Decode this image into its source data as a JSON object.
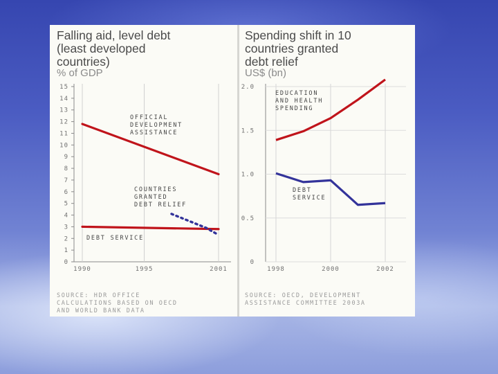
{
  "chart_data": [
    {
      "type": "line",
      "title": [
        "Falling aid, level debt",
        "(least developed",
        "countries)"
      ],
      "ylabel": "% of GDP",
      "ylim": [
        0,
        15
      ],
      "y_ticks": [
        "0",
        "1",
        "2",
        "3",
        "4",
        "5",
        "6",
        "7",
        "8",
        "9",
        "10",
        "11",
        "12",
        "13",
        "14",
        "15"
      ],
      "x_ticks": [
        "1990",
        "1995",
        "2001"
      ],
      "series": [
        {
          "name": "OFFICIAL DEVELOPMENT ASSISTANCE",
          "color": "#c0141b",
          "style": "solid",
          "points": [
            {
              "x": 1990,
              "y": 11.8
            },
            {
              "x": 2001,
              "y": 7.5
            }
          ]
        },
        {
          "name": "DEBT SERVICE",
          "color": "#c0141b",
          "style": "solid",
          "points": [
            {
              "x": 1990,
              "y": 3.0
            },
            {
              "x": 2001,
              "y": 2.8
            }
          ]
        },
        {
          "name": "COUNTRIES GRANTED DEBT RELIEF",
          "color": "#33339a",
          "style": "dotted",
          "points": [
            {
              "x": 1997.2,
              "y": 4.1
            },
            {
              "x": 2000,
              "y": 2.9
            },
            {
              "x": 2001,
              "y": 2.3
            }
          ]
        }
      ],
      "annotations": [
        [
          "OFFICIAL",
          "DEVELOPMENT",
          "ASSISTANCE"
        ],
        [
          "COUNTRIES",
          "GRANTED",
          "DEBT RELIEF"
        ],
        [
          "DEBT SERVICE"
        ]
      ],
      "source": [
        "SOURCE: HDR OFFICE",
        "CALCULATIONS BASED ON OECD",
        "AND WORLD BANK DATA"
      ]
    },
    {
      "type": "line",
      "title": [
        "Spending shift in 10",
        "countries granted",
        "debt relief"
      ],
      "ylabel": "US$ (bn)",
      "ylim": [
        0,
        2.0
      ],
      "y_ticks": [
        "0",
        "0.5",
        "1.0",
        "1.5",
        "2.0"
      ],
      "x_ticks": [
        "1998",
        "2000",
        "2002"
      ],
      "series": [
        {
          "name": "EDUCATION AND HEALTH SPENDING",
          "color": "#c0141b",
          "points": [
            {
              "x": 1998,
              "y": 1.39
            },
            {
              "x": 1999,
              "y": 1.49
            },
            {
              "x": 2000,
              "y": 1.64
            },
            {
              "x": 2001,
              "y": 1.85
            },
            {
              "x": 2002,
              "y": 2.08
            }
          ]
        },
        {
          "name": "DEBT SERVICE",
          "color": "#33339a",
          "points": [
            {
              "x": 1998,
              "y": 1.01
            },
            {
              "x": 1999,
              "y": 0.91
            },
            {
              "x": 2000,
              "y": 0.93
            },
            {
              "x": 2001,
              "y": 0.65
            },
            {
              "x": 2002,
              "y": 0.67
            }
          ]
        }
      ],
      "annotations": [
        [
          "EDUCATION",
          "AND HEALTH",
          "SPENDING"
        ],
        [
          "DEBT",
          "SERVICE"
        ]
      ],
      "source": [
        "SOURCE: OECD, DEVELOPMENT",
        "ASSISTANCE COMMITTEE 2003A"
      ]
    }
  ]
}
